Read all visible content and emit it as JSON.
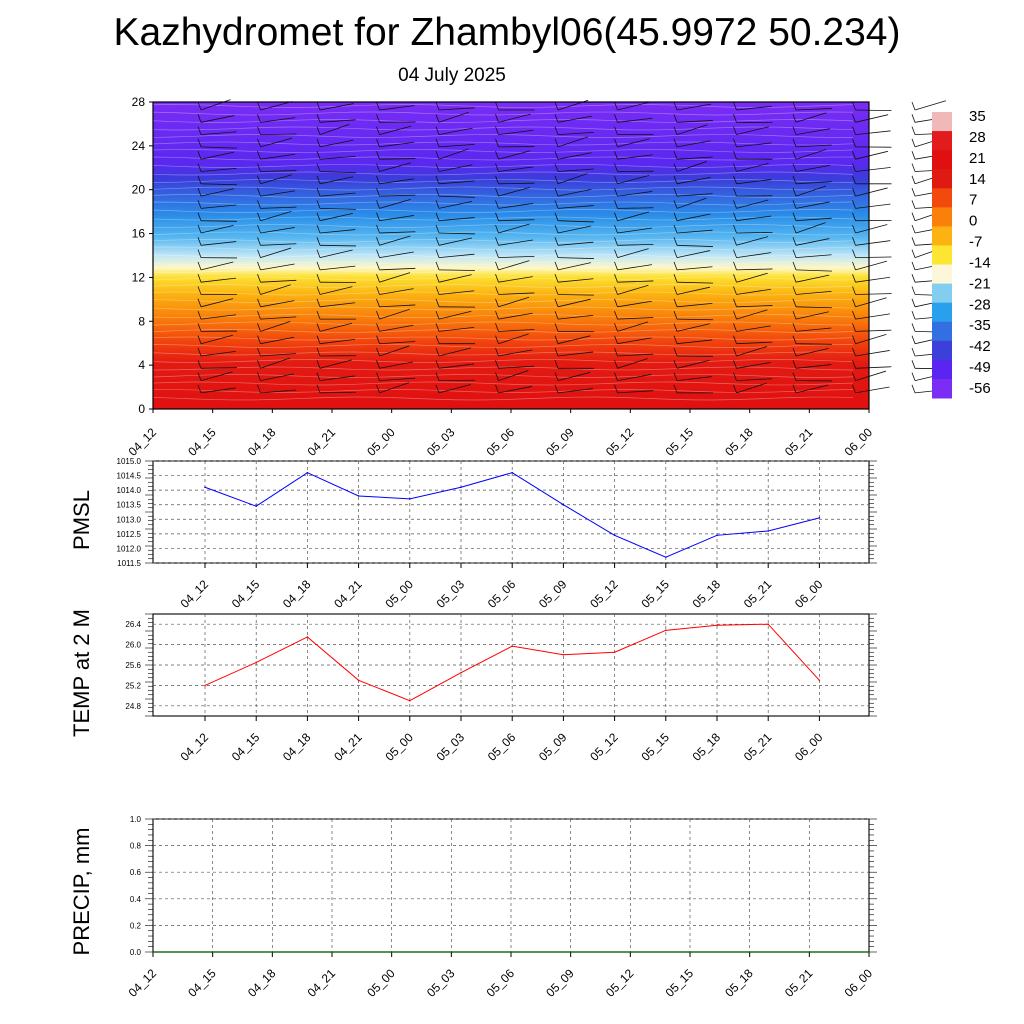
{
  "title": "Kazhydromet for Zhambyl06(45.9972 50.234)",
  "subtitle": "04 July 2025",
  "chart_data": [
    {
      "type": "heatmap",
      "description_of_field": "temperature cross-section with wind barbs",
      "x_tick_labels": [
        "04_12",
        "04_15",
        "04_18",
        "04_21",
        "05_00",
        "05_03",
        "05_06",
        "05_09",
        "05_12",
        "05_15",
        "05_18",
        "05_21",
        "06_00"
      ],
      "y_tick_labels": [
        "0",
        "4",
        "8",
        "12",
        "16",
        "20",
        "24",
        "28"
      ],
      "ylim": [
        0,
        28
      ],
      "colorbar_labels": [
        "35",
        "28",
        "21",
        "14",
        "7",
        "0",
        "-7",
        "-14",
        "-21",
        "-28",
        "-35",
        "-42",
        "-49",
        "-56"
      ],
      "colorbar_colors": [
        "#f0b8b8",
        "#e21c1c",
        "#e01010",
        "#df1a10",
        "#f24a0c",
        "#f9800a",
        "#fbb212",
        "#fde632",
        "#fbf7d8",
        "#82cdf0",
        "#2aa0ec",
        "#3270e2",
        "#3c3fd9",
        "#5a25f0",
        "#7b2cf5"
      ]
    },
    {
      "type": "line",
      "ylabel": "PMSL",
      "x_tick_labels": [
        "04_12",
        "04_15",
        "04_18",
        "04_21",
        "05_00",
        "05_03",
        "05_06",
        "05_09",
        "05_12",
        "05_15",
        "05_18",
        "05_21",
        "06_00"
      ],
      "y_tick_labels": [
        "1015.0",
        "1014.5",
        "1014.0",
        "1013.5",
        "1013.0",
        "1012.5",
        "1012.0",
        "1011.5"
      ],
      "ylim": [
        1011.5,
        1015.0
      ],
      "grid": true,
      "color": "#0000ff",
      "series": [
        {
          "values": [
            1014.1,
            1013.45,
            1014.6,
            1013.8,
            1013.7,
            1014.1,
            1014.6,
            1013.5,
            1012.45,
            1011.7,
            1012.45,
            1012.6,
            1013.05
          ]
        }
      ]
    },
    {
      "type": "line",
      "ylabel": "TEMP at 2 M",
      "x_tick_labels": [
        "04_12",
        "04_15",
        "04_18",
        "04_21",
        "05_00",
        "05_03",
        "05_06",
        "05_09",
        "05_12",
        "05_15",
        "05_18",
        "05_21",
        "06_00"
      ],
      "y_tick_labels": [
        "26.4",
        "26.0",
        "25.6",
        "25.2",
        "24.8"
      ],
      "ylim": [
        24.6,
        26.6
      ],
      "grid": true,
      "color": "#ff0000",
      "series": [
        {
          "values": [
            25.2,
            25.65,
            26.15,
            25.3,
            24.9,
            25.45,
            25.97,
            25.8,
            25.85,
            26.28,
            26.38,
            26.4,
            25.3
          ]
        }
      ]
    },
    {
      "type": "line",
      "ylabel": "PRECIP, mm",
      "x_tick_labels": [
        "04_12",
        "04_15",
        "04_18",
        "04_21",
        "05_00",
        "05_03",
        "05_06",
        "05_09",
        "05_12",
        "05_15",
        "05_18",
        "05_21",
        "06_00"
      ],
      "y_tick_labels": [
        "1.0",
        "0.8",
        "0.6",
        "0.4",
        "0.2",
        "0.0"
      ],
      "ylim": [
        0,
        1
      ],
      "grid": true,
      "color": "#006400",
      "series": [
        {
          "values": [
            0,
            0,
            0,
            0,
            0,
            0,
            0,
            0,
            0,
            0,
            0,
            0,
            0
          ]
        }
      ]
    }
  ]
}
